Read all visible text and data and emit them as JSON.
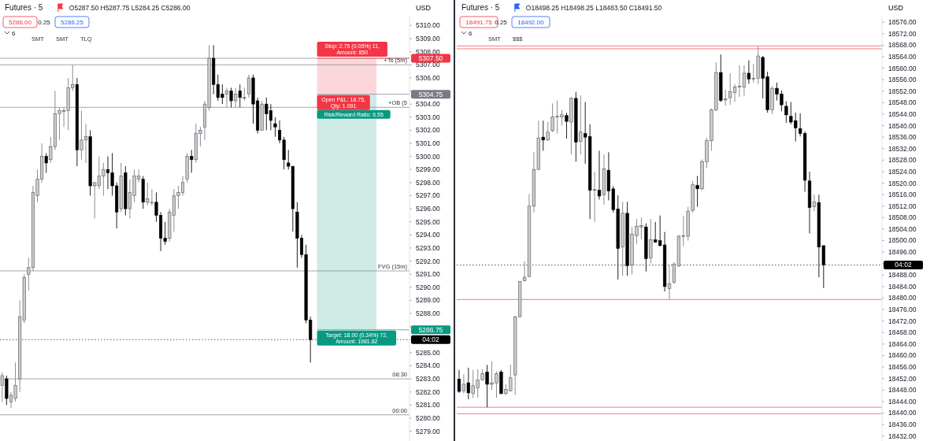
{
  "chart_data": [
    {
      "type": "candlestick",
      "title": "Futures · 5",
      "subtitle": "O5287.50 H5287.75 L5284.25 C5286.00",
      "ylabel": "USD",
      "tick_labels": "y",
      "categories": [
        null,
        null,
        null,
        null,
        null,
        null,
        null,
        null,
        null,
        null,
        null,
        null,
        null,
        null,
        null,
        null,
        null,
        null,
        null,
        null,
        null,
        null,
        null,
        null,
        null,
        null,
        null,
        null,
        null,
        null,
        null,
        null,
        null,
        null,
        null,
        null,
        null,
        null,
        null,
        null,
        null,
        null,
        null,
        null,
        null,
        null,
        null,
        null,
        null,
        null,
        null,
        null,
        null,
        null,
        null,
        null,
        null,
        null,
        null,
        null,
        null,
        null,
        null,
        null,
        null,
        null,
        null,
        null,
        null,
        null,
        null,
        null,
        null,
        null,
        null,
        null,
        null,
        null,
        null,
        null,
        null,
        null,
        null,
        null,
        null,
        null,
        null,
        null,
        null,
        null,
        null,
        null,
        null
      ],
      "ohlc": [
        [
          5282.5,
          5283.5,
          5281.25,
          5283.25
        ],
        [
          5283,
          5283.25,
          5281,
          5281.5
        ],
        [
          5281.25,
          5282,
          5280.75,
          5281.75
        ],
        [
          5281.5,
          5284.25,
          5281.25,
          5282.5
        ],
        [
          5283,
          5289,
          5282,
          5287.75
        ],
        [
          5287.5,
          5291,
          5287.25,
          5290.75
        ],
        [
          5291,
          5292.25,
          5289.75,
          5291.5
        ],
        [
          5291.5,
          5297.75,
          5291.25,
          5297.25
        ],
        [
          5297,
          5299,
          5296.5,
          5298.25
        ],
        [
          5298.25,
          5301,
          5298,
          5300
        ],
        [
          5300,
          5300.25,
          5298.75,
          5299.5
        ],
        [
          5299.75,
          5301.5,
          5299.5,
          5300.75
        ],
        [
          5300.75,
          5305,
          5300.5,
          5303.25
        ],
        [
          5303.25,
          5303.75,
          5301.25,
          5303.5
        ],
        [
          5303.5,
          5303.75,
          5302.25,
          5303.5
        ],
        [
          5303.5,
          5306,
          5302,
          5305.25
        ],
        [
          5305.25,
          5307,
          5305,
          5305.5
        ],
        [
          5305.5,
          5306,
          5299.25,
          5300.5
        ],
        [
          5300.5,
          5303.5,
          5299.75,
          5301.25
        ],
        [
          5301.25,
          5302.5,
          5299.5,
          5301.5
        ],
        [
          5301.5,
          5302,
          5297,
          5297.75
        ],
        [
          5297.75,
          5298,
          5295.25,
          5298
        ],
        [
          5297.75,
          5300,
          5297.5,
          5298.5
        ],
        [
          5298.5,
          5299.5,
          5297,
          5299
        ],
        [
          5299,
          5300,
          5297.5,
          5298.75
        ],
        [
          5298.75,
          5300.25,
          5297,
          5297.75
        ],
        [
          5297.75,
          5298,
          5294.5,
          5295.75
        ],
        [
          5296,
          5299.5,
          5295.75,
          5298.5
        ],
        [
          5298.75,
          5299.25,
          5295.5,
          5296
        ],
        [
          5296,
          5298.25,
          5295.25,
          5297.25
        ],
        [
          5297,
          5299,
          5296.5,
          5298.5
        ],
        [
          5298.25,
          5299,
          5298,
          5298.5
        ],
        [
          5298.25,
          5298.5,
          5296,
          5296.5
        ],
        [
          5296.5,
          5298,
          5296.25,
          5296.75
        ],
        [
          5296.5,
          5297.5,
          5296.25,
          5296.5
        ],
        [
          5296.5,
          5297.25,
          5295,
          5295.5
        ],
        [
          5295.5,
          5295.75,
          5292.75,
          5293.75
        ],
        [
          5293.75,
          5295,
          5293.25,
          5293.5
        ],
        [
          5293.75,
          5296,
          5293.5,
          5295.75
        ],
        [
          5295.5,
          5297.5,
          5294.25,
          5297
        ],
        [
          5297,
          5297.75,
          5296,
          5297.25
        ],
        [
          5297.25,
          5298.5,
          5297,
          5298
        ],
        [
          5298.25,
          5300.25,
          5298,
          5300
        ],
        [
          5300,
          5300.5,
          5298.75,
          5299.75
        ],
        [
          5299.75,
          5302.5,
          5299.5,
          5301.75
        ],
        [
          5301.75,
          5302.25,
          5300.75,
          5302
        ],
        [
          5302.25,
          5304.25,
          5301.25,
          5304
        ],
        [
          5303.75,
          5308.5,
          5303.5,
          5307.5
        ],
        [
          5307.5,
          5308.5,
          5304.75,
          5305.5
        ],
        [
          5305.5,
          5306.25,
          5304.25,
          5304.5
        ],
        [
          5304.75,
          5305.5,
          5304,
          5304.5
        ],
        [
          5304.75,
          5305.25,
          5303.75,
          5305
        ],
        [
          5305,
          5305.25,
          5303.75,
          5304.25
        ],
        [
          5304.25,
          5305.25,
          5303.75,
          5304.75
        ],
        [
          5305,
          5305.5,
          5303.75,
          5304.5
        ],
        [
          5304.5,
          5305.25,
          5304.25,
          5304.5
        ],
        [
          5304.75,
          5306.25,
          5304.5,
          5306
        ],
        [
          5306,
          5306.25,
          5302.5,
          5304
        ],
        [
          5304.25,
          5304.5,
          5301.75,
          5302
        ],
        [
          5302,
          5304.25,
          5302,
          5304
        ],
        [
          5304,
          5304.5,
          5302,
          5303.25
        ],
        [
          5303.5,
          5304,
          5302,
          5302.75
        ],
        [
          5302.5,
          5303,
          5301.5,
          5302.25
        ],
        [
          5302,
          5302.75,
          5301,
          5301.25
        ],
        [
          5301.25,
          5301.5,
          5299,
          5299.75
        ],
        [
          5299.5,
          5300.5,
          5299,
          5299.25
        ],
        [
          5299.25,
          5299.25,
          5294.25,
          5296
        ],
        [
          5295.75,
          5296.5,
          5291.5,
          5293.75
        ],
        [
          5293.75,
          5294,
          5292.25,
          5292.5
        ],
        [
          5292.5,
          5293.25,
          5287.25,
          5287.5
        ],
        [
          5287.5,
          5287.75,
          5284.25,
          5286
        ],
        null,
        null,
        null,
        null,
        null,
        null,
        null,
        null,
        null,
        null,
        null,
        null,
        null,
        null,
        null,
        null,
        null,
        null,
        null,
        null,
        null,
        null
      ],
      "ylim": [
        5278.25,
        5310.75
      ],
      "yticks": [
        {
          "value": 5279,
          "label": "5279.00"
        },
        {
          "value": 5280,
          "label": "5280.00"
        },
        {
          "value": 5281,
          "label": "5281.00"
        },
        {
          "value": 5282,
          "label": "5282.00"
        },
        {
          "value": 5283,
          "label": "5283.00"
        },
        {
          "value": 5284,
          "label": "5284.00"
        },
        {
          "value": 5285,
          "label": "5285.00"
        },
        {
          "value": 5286,
          "label": null
        },
        {
          "value": 5287,
          "label": null
        },
        {
          "value": 5288,
          "label": "5288.00"
        },
        {
          "value": 5289,
          "label": "5289.00"
        },
        {
          "value": 5290,
          "label": "5290.00"
        },
        {
          "value": 5291,
          "label": "5291.00"
        },
        {
          "value": 5292,
          "label": "5292.00"
        },
        {
          "value": 5293,
          "label": "5293.00"
        },
        {
          "value": 5294,
          "label": "5294.00"
        },
        {
          "value": 5295,
          "label": "5295.00"
        },
        {
          "value": 5296,
          "label": "5296.00"
        },
        {
          "value": 5297,
          "label": "5297.00"
        },
        {
          "value": 5298,
          "label": "5298.00"
        },
        {
          "value": 5299,
          "label": "5299.00"
        },
        {
          "value": 5300,
          "label": "5300.00"
        },
        {
          "value": 5301,
          "label": "5301.00"
        },
        {
          "value": 5302,
          "label": "5302.00"
        },
        {
          "value": 5303,
          "label": "5303.00"
        },
        {
          "value": 5304,
          "label": "5304.00"
        },
        {
          "value": 5305,
          "label": null
        },
        {
          "value": 5306,
          "label": "5306.00"
        },
        {
          "value": 5307,
          "label": "5307.00"
        },
        {
          "value": 5308,
          "label": "5308.00"
        },
        {
          "value": 5309,
          "label": "5309.00"
        },
        {
          "value": 5310,
          "label": "5310.00"
        }
      ],
      "ref_lines": [
        {
          "axis": "y",
          "value": 5307.5,
          "label": null,
          "color": "#787b86",
          "line_style": "solid"
        },
        {
          "axis": "y",
          "value": 5307,
          "label": null,
          "color": "#787b86",
          "line_style": "solid"
        },
        {
          "axis": "y",
          "value": 5303.75,
          "label": null,
          "color": "#787b86",
          "line_style": "solid"
        },
        {
          "axis": "y",
          "value": 5291.25,
          "label": null,
          "color": "#787b86",
          "line_style": "solid"
        },
        {
          "axis": "y",
          "value": 5283,
          "label": null,
          "color": "#787b86",
          "line_style": "solid"
        },
        {
          "axis": "y",
          "value": 5280.25,
          "label": null,
          "color": "#787b86",
          "line_style": "solid"
        },
        {
          "axis": "y",
          "value": 5286,
          "label": null,
          "color": "#000000",
          "line_style": "dotted"
        },
        {
          "axis": "y",
          "value": 5307.5,
          "label": "5307.50",
          "color": "#f23645",
          "line_style": "solid"
        },
        {
          "axis": "y",
          "value": 5304.75,
          "label": "5304.75",
          "color": "#787b86",
          "line_style": "solid"
        },
        {
          "axis": "y",
          "value": 5286.75,
          "label": "5286.75",
          "color": "#089981",
          "line_style": "solid"
        }
      ],
      "bands": [
        {
          "axis": "y",
          "from": 5304.75,
          "to": 5307.5,
          "color": "#f23645"
        },
        {
          "axis": "y",
          "from": 5286.75,
          "to": 5304.75,
          "color": "#089981"
        }
      ],
      "annotations": [
        "5286.00",
        "0.25",
        "5286.25",
        "6",
        "04:02",
        "Risk/Reward Ratio: 6.55",
        "SMT",
        "SMT",
        "TLQ",
        {
          "text": "Stop: 2.75 (0.05%) 11, Amount: 850",
          "y": 5307.5
        },
        {
          "text": "Open P&L: 18.75, Qty: 1.091",
          "y": 5304.75
        },
        {
          "text": "Target: 18.00 (0.34%) 72, Amount: 1981.82",
          "y": 5286.75
        },
        {
          "text": "+Ts (5m)",
          "y": 5307
        },
        {
          "text": "+OB (5",
          "y": 5303.75
        },
        {
          "text": "FVG (15m)",
          "y": 5291.25
        },
        {
          "text": "08:30",
          "y": 5283
        },
        {
          "text": "00:00",
          "y": 5280.25
        }
      ]
    },
    {
      "type": "candlestick",
      "title": "Futures · 5",
      "subtitle": "O18498.25 H18498.25 L18483.50 C18491.50",
      "ylabel": "USD",
      "tick_labels": "y",
      "categories": [
        null,
        null,
        null,
        null,
        null,
        null,
        null,
        null,
        null,
        null,
        null,
        null,
        null,
        null,
        null,
        null,
        null,
        null,
        null,
        null,
        null,
        null,
        null,
        null,
        null,
        null,
        null,
        null,
        null,
        null,
        null,
        null,
        null,
        null,
        null,
        null,
        null,
        null,
        null,
        null,
        null,
        null,
        null,
        null,
        null,
        null,
        null,
        null,
        null,
        null,
        null,
        null,
        null,
        null,
        null,
        null,
        null,
        null,
        null,
        null,
        null,
        null,
        null,
        null,
        null,
        null,
        null,
        null,
        null,
        null,
        null,
        null,
        null,
        null,
        null,
        null,
        null,
        null,
        null,
        null,
        null,
        null,
        null,
        null,
        null,
        null,
        null,
        null,
        null,
        null,
        null
      ],
      "ohlc": [
        [
          18451.75,
          18455,
          18447,
          18447.5
        ],
        [
          18447.75,
          18453.5,
          18446.75,
          18450
        ],
        [
          18450.5,
          18455.75,
          18444.75,
          18447
        ],
        [
          18446.75,
          18455,
          18445.25,
          18449.5
        ],
        [
          18448.75,
          18455.25,
          18445.25,
          18451.5
        ],
        [
          18451.5,
          18455.25,
          18451.25,
          18453.75
        ],
        [
          18454.25,
          18456.75,
          18442,
          18450
        ],
        [
          18450,
          18458,
          18448,
          18450.5
        ],
        [
          18450.5,
          18454.5,
          18445.25,
          18453.75
        ],
        [
          18454.25,
          18455,
          18446.5,
          18446.75
        ],
        [
          18446.75,
          18450,
          18446.25,
          18448.25
        ],
        [
          18447.75,
          18456.75,
          18447.5,
          18452.25
        ],
        [
          18453.25,
          18473.75,
          18446.25,
          18473.5
        ],
        [
          18473.5,
          18486,
          18473.25,
          18485.75
        ],
        [
          18486,
          18492.75,
          18485.75,
          18487.25
        ],
        [
          18487.5,
          18516.25,
          18487.25,
          18512
        ],
        [
          18512,
          18530.75,
          18509.75,
          18524.75
        ],
        [
          18524.75,
          18541.75,
          18524.5,
          18535.75
        ],
        [
          18536,
          18541.75,
          18531.25,
          18535
        ],
        [
          18535,
          18541.25,
          18534.75,
          18537.75
        ],
        [
          18538.25,
          18547.75,
          18537.75,
          18543
        ],
        [
          18543,
          18548.75,
          18537.25,
          18543.25
        ],
        [
          18543,
          18545.5,
          18540,
          18543.75
        ],
        [
          18543.5,
          18544.5,
          18535.5,
          18541.5
        ],
        [
          18541.25,
          18550,
          18530,
          18549.5
        ],
        [
          18549.5,
          18551.75,
          18527.5,
          18534.25
        ],
        [
          18534.5,
          18550.5,
          18530,
          18537.75
        ],
        [
          18537.25,
          18548.25,
          18526.75,
          18536
        ],
        [
          18536.25,
          18540.5,
          18507.5,
          18517.5
        ],
        [
          18517.5,
          18524,
          18506.5,
          18517.75
        ],
        [
          18517.5,
          18531.25,
          18514.25,
          18515.5
        ],
        [
          18516,
          18530,
          18512.5,
          18525
        ],
        [
          18524.5,
          18530.75,
          18514,
          18517.25
        ],
        [
          18518,
          18519,
          18509.75,
          18510.75
        ],
        [
          18511,
          18515.75,
          18486.5,
          18497.25
        ],
        [
          18497.75,
          18513.5,
          18487.75,
          18509.5
        ],
        [
          18509.5,
          18513.5,
          18487.75,
          18491.25
        ],
        [
          18491.5,
          18504.75,
          18488.25,
          18502.25
        ],
        [
          18501.75,
          18507.5,
          18498.75,
          18505
        ],
        [
          18504.75,
          18508,
          18500.5,
          18505.25
        ],
        [
          18504.75,
          18506,
          18489.25,
          18493.75
        ],
        [
          18494,
          18507.5,
          18492,
          18500.25
        ],
        [
          18500.25,
          18506.5,
          18499.25,
          18499.5
        ],
        [
          18500,
          18508.75,
          18498,
          18498.25
        ],
        [
          18498.5,
          18503,
          18482.25,
          18484
        ],
        [
          18483.25,
          18491.5,
          18479.5,
          18485
        ],
        [
          18485.5,
          18492.5,
          18485,
          18491.75
        ],
        [
          18491.25,
          18502,
          18490.75,
          18501.5
        ],
        [
          18501.5,
          18508.5,
          18498,
          18501.75
        ],
        [
          18501.5,
          18511.75,
          18500,
          18510.25
        ],
        [
          18510.5,
          18520.75,
          18509.75,
          18519.5
        ],
        [
          18519.25,
          18522.5,
          18511.75,
          18518
        ],
        [
          18518,
          18528.25,
          18517.5,
          18527.5
        ],
        [
          18527.5,
          18535.75,
          18525.25,
          18534.75
        ],
        [
          18534.75,
          18546,
          18531.25,
          18545.5
        ],
        [
          18545.5,
          18562,
          18545,
          18558.5
        ],
        [
          18558.5,
          18564.75,
          18548.25,
          18548.75
        ],
        [
          18549,
          18552.5,
          18547,
          18549.25
        ],
        [
          18549.75,
          18558.25,
          18547.25,
          18551.75
        ],
        [
          18551.5,
          18554.5,
          18548.25,
          18553.5
        ],
        [
          18553.5,
          18561,
          18550,
          18553.75
        ],
        [
          18553.5,
          18561,
          18550.25,
          18558.25
        ],
        [
          18558.25,
          18562.75,
          18554.5,
          18556.25
        ],
        [
          18556.25,
          18561.5,
          18555,
          18556.5
        ],
        [
          18556.5,
          18567.5,
          18554.5,
          18564.25
        ],
        [
          18563.75,
          18564.25,
          18549.5,
          18556.5
        ],
        [
          18557,
          18558.75,
          18544.5,
          18545.5
        ],
        [
          18545.5,
          18553.75,
          18544,
          18553
        ],
        [
          18553,
          18555,
          18548.75,
          18551
        ],
        [
          18551,
          18552.25,
          18545,
          18547.25
        ],
        [
          18546.75,
          18548.5,
          18541,
          18543.75
        ],
        [
          18543.25,
          18548.25,
          18540.5,
          18541.25
        ],
        [
          18541.75,
          18544.5,
          18534.5,
          18539.25
        ],
        [
          18539,
          18544.25,
          18536.25,
          18537.25
        ],
        [
          18537.25,
          18538,
          18517,
          18521
        ],
        [
          18520.75,
          18524,
          18502.5,
          18511.5
        ],
        [
          18511.75,
          18516,
          18510.25,
          18513.5
        ],
        [
          18513.25,
          18516,
          18487.25,
          18497.75
        ],
        [
          18498.25,
          18498.25,
          18483.5,
          18491.5
        ],
        null,
        null,
        null,
        null,
        null,
        null,
        null,
        null,
        null,
        null,
        null,
        null
      ],
      "ylim": [
        18430.25,
        18578.25
      ],
      "yticks": [
        {
          "value": 18432,
          "label": "18432.00"
        },
        {
          "value": 18436,
          "label": "18436.00"
        },
        {
          "value": 18440,
          "label": "18440.00"
        },
        {
          "value": 18444,
          "label": "18444.00"
        },
        {
          "value": 18448,
          "label": "18448.00"
        },
        {
          "value": 18452,
          "label": "18452.00"
        },
        {
          "value": 18456,
          "label": "18456.00"
        },
        {
          "value": 18460,
          "label": "18460.00"
        },
        {
          "value": 18464,
          "label": "18464.00"
        },
        {
          "value": 18468,
          "label": "18468.00"
        },
        {
          "value": 18472,
          "label": "18472.00"
        },
        {
          "value": 18476,
          "label": "18476.00"
        },
        {
          "value": 18480,
          "label": "18480.00"
        },
        {
          "value": 18484,
          "label": "18484.00"
        },
        {
          "value": 18488,
          "label": "18488.00"
        },
        {
          "value": 18492,
          "label": null
        },
        {
          "value": 18496,
          "label": "18496.00"
        },
        {
          "value": 18500,
          "label": "18500.00"
        },
        {
          "value": 18504,
          "label": "18504.00"
        },
        {
          "value": 18508,
          "label": "18508.00"
        },
        {
          "value": 18512,
          "label": "18512.00"
        },
        {
          "value": 18516,
          "label": "18516.00"
        },
        {
          "value": 18520,
          "label": "18520.00"
        },
        {
          "value": 18524,
          "label": "18524.00"
        },
        {
          "value": 18528,
          "label": "18528.00"
        },
        {
          "value": 18532,
          "label": "18532.00"
        },
        {
          "value": 18536,
          "label": "18536.00"
        },
        {
          "value": 18540,
          "label": "18540.00"
        },
        {
          "value": 18544,
          "label": "18544.00"
        },
        {
          "value": 18548,
          "label": "18548.00"
        },
        {
          "value": 18552,
          "label": "18552.00"
        },
        {
          "value": 18556,
          "label": "18556.00"
        },
        {
          "value": 18560,
          "label": "18560.00"
        },
        {
          "value": 18564,
          "label": "18564.00"
        },
        {
          "value": 18568,
          "label": "18568.00"
        },
        {
          "value": 18572,
          "label": "18572.00"
        },
        {
          "value": 18576,
          "label": "18576.00"
        }
      ],
      "ref_lines": [
        {
          "axis": "y",
          "value": 18567.75,
          "label": null,
          "color": "#f23645",
          "line_style": "solid"
        },
        {
          "axis": "y",
          "value": 18566.75,
          "label": null,
          "color": "#f23645",
          "line_style": "solid"
        },
        {
          "axis": "y",
          "value": 18479.5,
          "label": null,
          "color": "#f23645",
          "line_style": "solid"
        },
        {
          "axis": "y",
          "value": 18442,
          "label": null,
          "color": "#f23645",
          "line_style": "solid"
        },
        {
          "axis": "y",
          "value": 18439.75,
          "label": null,
          "color": "#f23645",
          "line_style": "solid"
        },
        {
          "axis": "y",
          "value": 18491.5,
          "label": null,
          "color": "#000000",
          "line_style": "dotted"
        }
      ],
      "annotations": [
        "18491.75",
        "0.25",
        "18492.00",
        "6",
        "04:02",
        "SMT",
        "$$$"
      ]
    }
  ]
}
